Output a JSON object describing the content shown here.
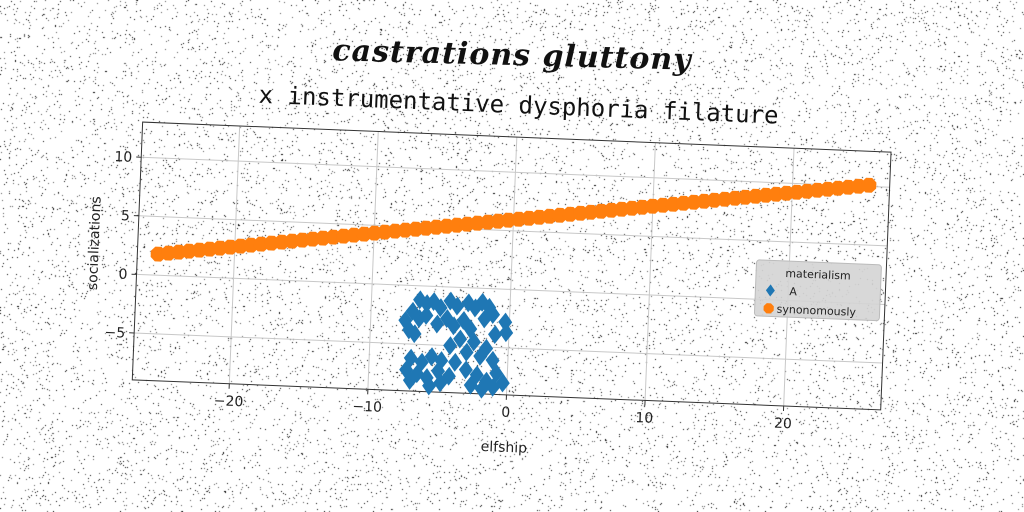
{
  "suptitle": "castrations gluttony",
  "chart_data": {
    "type": "scatter",
    "title": "x instrumentative dysphoria filature",
    "xlabel": "elfship",
    "ylabel": "socializations",
    "xlim": [
      -27,
      27
    ],
    "ylim": [
      -9,
      13
    ],
    "xticks": [
      -20,
      -10,
      0,
      10,
      20
    ],
    "yticks": [
      -5,
      0,
      5,
      10
    ],
    "xtick_labels": [
      "−20",
      "−10",
      "0",
      "10",
      "20"
    ],
    "ytick_labels": [
      "−5",
      "0",
      "5",
      "10"
    ],
    "grid": true,
    "legend": {
      "title": "materialism",
      "placement": "right"
    },
    "series": [
      {
        "name": "A",
        "marker": "diamond",
        "color": "#1f77b4",
        "points": [
          [
            -6.5,
            -1.2
          ],
          [
            -6.0,
            -1.5
          ],
          [
            -5.5,
            -1.3
          ],
          [
            -5.0,
            -1.8
          ],
          [
            -4.3,
            -1.2
          ],
          [
            -3.8,
            -1.6
          ],
          [
            -3.0,
            -1.3
          ],
          [
            -2.5,
            -1.7
          ],
          [
            -2.0,
            -1.2
          ],
          [
            -1.5,
            -1.6
          ],
          [
            -7.0,
            -2.2
          ],
          [
            -7.5,
            -3.0
          ],
          [
            -6.5,
            -2.8
          ],
          [
            -6.0,
            -2.5
          ],
          [
            -5.2,
            -3.2
          ],
          [
            -4.5,
            -2.7
          ],
          [
            -4.0,
            -3.3
          ],
          [
            -3.3,
            -2.8
          ],
          [
            -2.8,
            -3.5
          ],
          [
            -1.8,
            -2.6
          ],
          [
            -1.2,
            -2.2
          ],
          [
            -0.3,
            -2.8
          ],
          [
            -0.2,
            -3.7
          ],
          [
            -1.0,
            -3.9
          ],
          [
            -7.2,
            -3.8
          ],
          [
            -6.8,
            -4.1
          ],
          [
            -3.5,
            -4.4
          ],
          [
            -2.5,
            -4.6
          ],
          [
            -1.6,
            -5.1
          ],
          [
            -4.2,
            -5.0
          ],
          [
            -3.0,
            -5.5
          ],
          [
            -2.0,
            -5.8
          ],
          [
            -1.1,
            -6.1
          ],
          [
            -7.0,
            -6.2
          ],
          [
            -6.2,
            -6.5
          ],
          [
            -5.5,
            -6.0
          ],
          [
            -4.8,
            -6.3
          ],
          [
            -3.8,
            -6.4
          ],
          [
            -7.3,
            -7.2
          ],
          [
            -6.5,
            -7.5
          ],
          [
            -5.8,
            -7.8
          ],
          [
            -5.0,
            -7.2
          ],
          [
            -4.2,
            -7.6
          ],
          [
            -3.0,
            -7.0
          ],
          [
            -2.2,
            -7.4
          ],
          [
            -1.5,
            -7.9
          ],
          [
            -0.8,
            -7.2
          ],
          [
            -0.3,
            -8.0
          ],
          [
            -2.6,
            -8.3
          ],
          [
            -1.8,
            -8.6
          ],
          [
            -1.0,
            -8.4
          ],
          [
            -7.0,
            -8.1
          ],
          [
            -5.6,
            -8.5
          ],
          [
            -4.8,
            -8.2
          ]
        ]
      },
      {
        "name": "synonomously",
        "marker": "octagon",
        "color": "#ff7f0e",
        "line": {
          "x_start": -25.5,
          "x_end": 25.5,
          "y_start": 1.8,
          "y_end": 10.1,
          "count": 70
        }
      }
    ]
  }
}
